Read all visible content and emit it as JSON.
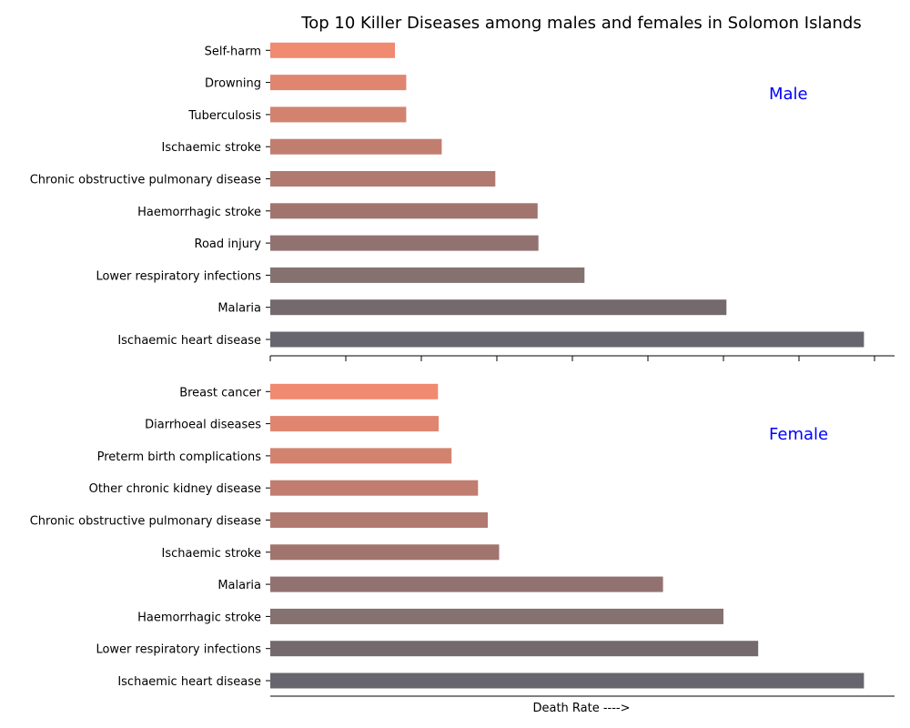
{
  "chart_data": {
    "type": "bar",
    "orientation": "horizontal",
    "title": "Top 10 Killer Diseases among males and females in Solomon Islands",
    "xlabel": "Death Rate ---->",
    "x_ticks_labeled": false,
    "grid": false,
    "panels": [
      {
        "label": "Male",
        "categories": [
          "Ischaemic heart disease",
          "Malaria",
          "Lower respiratory infections",
          "Road injury",
          "Haemorrhagic stroke",
          "Chronic obstructive pulmonary disease",
          "Ischaemic stroke",
          "Tuberculosis",
          "Drowning",
          "Self-harm"
        ],
        "values": [
          78.6,
          60.4,
          41.6,
          35.5,
          35.4,
          29.8,
          22.7,
          18.0,
          18.0,
          16.5
        ]
      },
      {
        "label": "Female",
        "categories": [
          "Ischaemic heart disease",
          "Lower respiratory infections",
          "Haemorrhagic stroke",
          "Malaria",
          "Ischaemic stroke",
          "Chronic obstructive pulmonary disease",
          "Other chronic kidney disease",
          "Preterm birth complications",
          "Diarrhoeal diseases",
          "Breast cancer"
        ],
        "values": [
          78.6,
          64.6,
          60.0,
          52.0,
          30.3,
          28.8,
          27.5,
          24.0,
          22.3,
          22.2
        ]
      }
    ],
    "colors": [
      "#67666e",
      "#746a6e",
      "#857170",
      "#927271",
      "#a1756d",
      "#b07a70",
      "#c17d6f",
      "#d28370",
      "#e08670",
      "#f08a70"
    ]
  }
}
